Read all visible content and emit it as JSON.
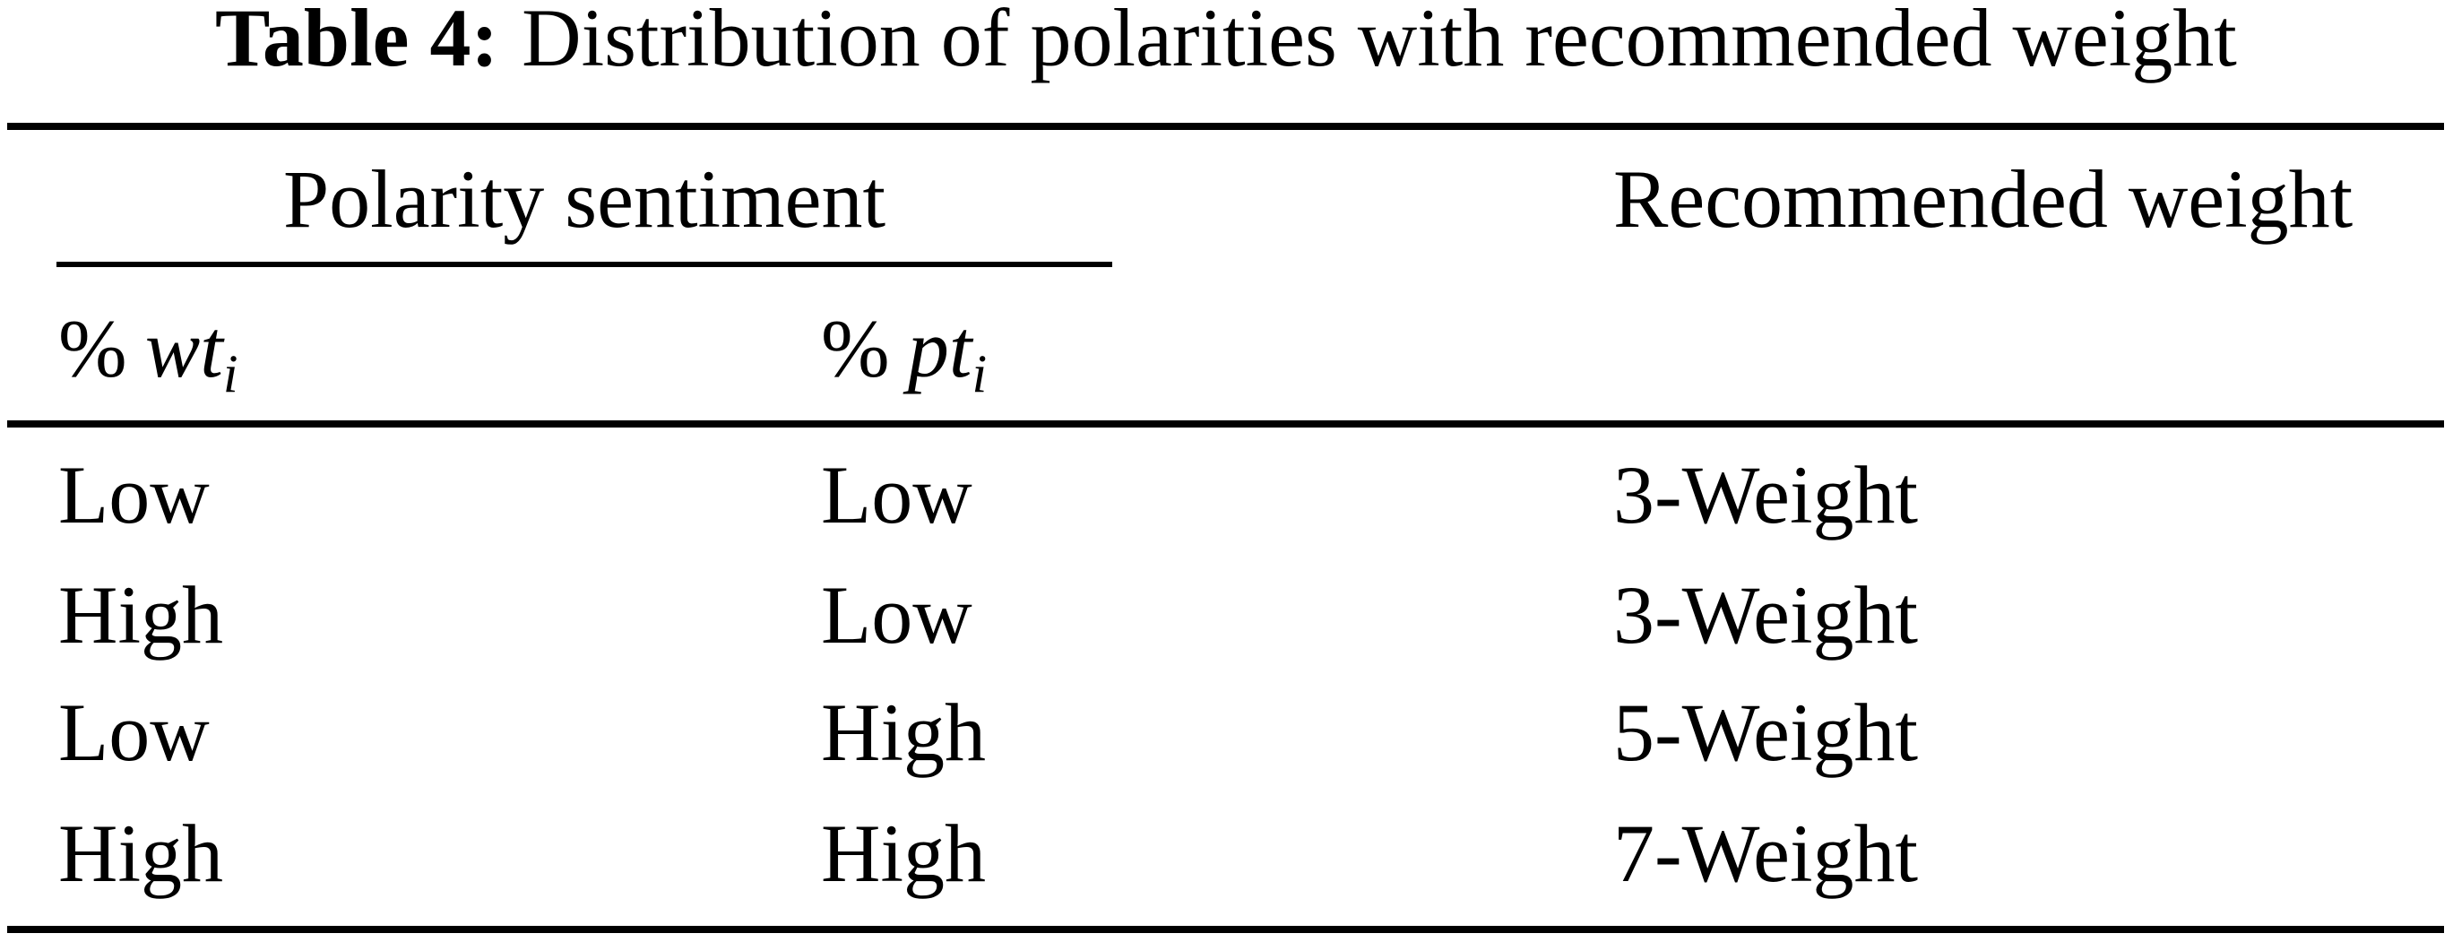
{
  "caption": {
    "label": "Table 4:",
    "text": "Distribution of polarities with recommended weight"
  },
  "table": {
    "group_header": "Polarity sentiment",
    "col3_header": "Recommended weight",
    "subheaders": {
      "wt": {
        "symbol": "%",
        "var": "wt",
        "sub": "i"
      },
      "pt": {
        "symbol": "%",
        "var": "pt",
        "sub": "i"
      }
    },
    "rows": [
      {
        "wt": "Low",
        "pt": "Low",
        "weight": "3-Weight"
      },
      {
        "wt": "High",
        "pt": "Low",
        "weight": "3-Weight"
      },
      {
        "wt": "Low",
        "pt": "High",
        "weight": "5-Weight"
      },
      {
        "wt": "High",
        "pt": "High",
        "weight": "7-Weight"
      }
    ]
  },
  "colors": {
    "background": "#ffffff",
    "text": "#000000",
    "rule": "#000000"
  }
}
